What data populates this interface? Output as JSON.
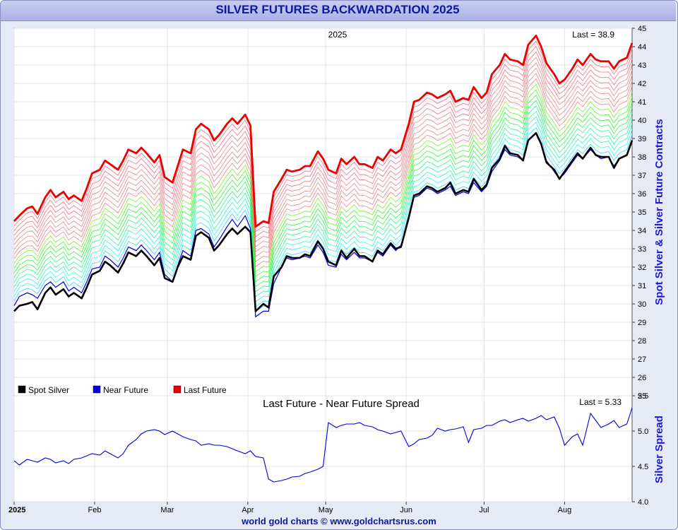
{
  "header": {
    "title": "SILVER FUTURES BACKWARDATION 2025"
  },
  "footer": {
    "credit": "world gold charts © www.goldchartsrus.com"
  },
  "chart_data": [
    {
      "type": "line",
      "title": "2025",
      "annotation": "Last = 38.9",
      "ylabel": "Spot Silver & Silver Future Contracts",
      "ylim": [
        25,
        45
      ],
      "yticks": [
        "25",
        "26",
        "27",
        "28",
        "29",
        "30",
        "31",
        "32",
        "33",
        "34",
        "35",
        "36",
        "37",
        "38",
        "39",
        "40",
        "41",
        "42",
        "43",
        "44",
        "45"
      ],
      "x_tick_labels": [
        "2025",
        "Feb",
        "Mar",
        "Apr",
        "May",
        "Jun",
        "Jul",
        "Aug"
      ],
      "x_tick_days": [
        0,
        31,
        59,
        90,
        120,
        151,
        181,
        212
      ],
      "grid": true,
      "legend_position": "bottom-left",
      "series_colors": {
        "spot": "#000000",
        "near": "#0000dd",
        "last": "#ee0000"
      },
      "legend": [
        {
          "label": "Spot Silver",
          "color": "#000000"
        },
        {
          "label": "Near Future",
          "color": "#0000dd"
        },
        {
          "label": "Last Future",
          "color": "#ee0000"
        }
      ],
      "intermediate_contracts": 17,
      "x_dates": [
        "2025-01-01",
        "2025-01-03",
        "2025-01-06",
        "2025-01-08",
        "2025-01-10",
        "2025-01-13",
        "2025-01-15",
        "2025-01-17",
        "2025-01-20",
        "2025-01-22",
        "2025-01-24",
        "2025-01-27",
        "2025-01-29",
        "2025-01-31",
        "2025-02-03",
        "2025-02-05",
        "2025-02-07",
        "2025-02-10",
        "2025-02-12",
        "2025-02-14",
        "2025-02-17",
        "2025-02-19",
        "2025-02-21",
        "2025-02-24",
        "2025-02-26",
        "2025-02-28",
        "2025-03-03",
        "2025-03-05",
        "2025-03-07",
        "2025-03-10",
        "2025-03-12",
        "2025-03-14",
        "2025-03-17",
        "2025-03-19",
        "2025-03-21",
        "2025-03-24",
        "2025-03-26",
        "2025-03-28",
        "2025-03-31",
        "2025-04-02",
        "2025-04-04",
        "2025-04-07",
        "2025-04-09",
        "2025-04-11",
        "2025-04-14",
        "2025-04-16",
        "2025-04-18",
        "2025-04-21",
        "2025-04-23",
        "2025-04-25",
        "2025-04-28",
        "2025-04-30",
        "2025-05-02",
        "2025-05-05",
        "2025-05-07",
        "2025-05-09",
        "2025-05-12",
        "2025-05-14",
        "2025-05-16",
        "2025-05-19",
        "2025-05-21",
        "2025-05-23",
        "2025-05-26",
        "2025-05-28",
        "2025-05-30",
        "2025-06-02",
        "2025-06-04",
        "2025-06-06",
        "2025-06-09",
        "2025-06-11",
        "2025-06-13",
        "2025-06-16",
        "2025-06-18",
        "2025-06-20",
        "2025-06-23",
        "2025-06-25",
        "2025-06-27",
        "2025-06-30",
        "2025-07-02",
        "2025-07-04",
        "2025-07-07",
        "2025-07-09",
        "2025-07-11",
        "2025-07-14",
        "2025-07-16",
        "2025-07-18",
        "2025-07-21",
        "2025-07-23",
        "2025-07-25",
        "2025-07-28",
        "2025-07-30",
        "2025-08-01",
        "2025-08-04",
        "2025-08-06",
        "2025-08-08",
        "2025-08-11",
        "2025-08-13",
        "2025-08-15",
        "2025-08-18",
        "2025-08-20",
        "2025-08-22",
        "2025-08-25",
        "2025-08-27"
      ],
      "spot": [
        29.6,
        29.9,
        30.0,
        30.1,
        29.7,
        30.6,
        30.9,
        30.5,
        30.8,
        30.4,
        30.6,
        30.3,
        30.9,
        31.6,
        31.8,
        32.3,
        32.1,
        31.7,
        32.2,
        32.8,
        32.6,
        32.9,
        32.6,
        32.1,
        32.5,
        31.4,
        31.2,
        32.0,
        32.6,
        32.4,
        33.7,
        33.9,
        33.6,
        32.9,
        33.2,
        33.8,
        34.1,
        33.8,
        34.2,
        33.9,
        29.6,
        30.0,
        29.8,
        31.5,
        32.0,
        32.6,
        32.5,
        32.5,
        32.7,
        32.6,
        33.4,
        33.0,
        32.3,
        32.1,
        32.9,
        32.5,
        33.0,
        32.6,
        32.6,
        32.3,
        32.9,
        32.7,
        33.3,
        33.0,
        33.1,
        34.7,
        35.9,
        36.0,
        36.4,
        36.3,
        36.1,
        36.3,
        36.6,
        36.0,
        36.2,
        36.1,
        36.8,
        36.2,
        36.5,
        37.4,
        37.9,
        38.6,
        38.2,
        38.1,
        37.8,
        38.9,
        39.3,
        38.7,
        37.7,
        37.3,
        36.8,
        37.2,
        37.8,
        38.2,
        37.9,
        38.5,
        38.1,
        38.0,
        38.0,
        37.4,
        37.9,
        38.1,
        38.9
      ],
      "near": [
        29.9,
        30.4,
        30.6,
        30.5,
        30.3,
        31.0,
        31.2,
        30.9,
        31.2,
        30.7,
        30.9,
        30.6,
        31.2,
        31.9,
        32.0,
        32.6,
        32.4,
        32.0,
        32.5,
        33.1,
        32.9,
        33.2,
        32.9,
        32.4,
        32.8,
        31.6,
        31.2,
        32.1,
        32.9,
        32.6,
        34.0,
        34.1,
        33.8,
        33.1,
        33.5,
        34.2,
        34.6,
        34.2,
        34.8,
        34.1,
        29.3,
        29.6,
        29.6,
        31.1,
        32.0,
        32.5,
        32.4,
        32.5,
        32.6,
        32.5,
        33.2,
        32.8,
        32.1,
        32.0,
        32.7,
        32.4,
        32.8,
        32.5,
        32.5,
        32.3,
        32.8,
        32.6,
        33.2,
        32.9,
        33.2,
        34.6,
        35.8,
        35.9,
        36.3,
        36.2,
        36.0,
        36.2,
        36.4,
        35.9,
        36.1,
        36.0,
        36.6,
        36.1,
        36.4,
        37.2,
        37.8,
        38.4,
        38.1,
        38.0,
        37.8,
        38.9,
        39.3,
        38.7,
        37.8,
        37.2,
        36.8,
        37.1,
        37.7,
        38.1,
        37.9,
        38.4,
        38.1,
        37.9,
        38.0,
        37.5,
        37.9,
        38.1,
        38.9
      ],
      "last": [
        34.5,
        34.8,
        35.2,
        35.3,
        34.9,
        35.8,
        36.2,
        35.8,
        36.1,
        35.7,
        35.9,
        35.6,
        36.3,
        37.1,
        37.3,
        37.8,
        37.6,
        37.3,
        37.8,
        38.4,
        38.2,
        38.5,
        38.2,
        37.7,
        38.1,
        36.9,
        36.6,
        37.5,
        38.4,
        38.2,
        39.5,
        39.8,
        39.5,
        38.9,
        39.2,
        39.8,
        40.1,
        39.8,
        40.3,
        39.7,
        34.2,
        34.5,
        34.4,
        36.1,
        36.8,
        37.3,
        37.2,
        37.3,
        37.5,
        37.5,
        38.3,
        37.9,
        37.3,
        37.1,
        37.9,
        37.6,
        38.0,
        37.6,
        37.6,
        37.4,
        38.0,
        37.8,
        38.4,
        38.2,
        38.4,
        39.8,
        41.0,
        41.1,
        41.5,
        41.4,
        41.2,
        41.4,
        41.6,
        41.0,
        41.2,
        41.1,
        41.8,
        41.2,
        41.5,
        42.5,
        43.0,
        43.6,
        43.3,
        43.2,
        43.0,
        44.1,
        44.6,
        44.0,
        43.1,
        42.5,
        42.0,
        42.2,
        42.8,
        43.3,
        43.0,
        43.6,
        43.3,
        43.2,
        43.2,
        42.8,
        43.2,
        43.4,
        44.2
      ]
    },
    {
      "type": "line",
      "title": "Last Future - Near Future Spread",
      "annotation": "Last = 5.33",
      "ylabel": "Silver Spread",
      "ylim": [
        4.0,
        5.5
      ],
      "yticks": [
        "4.0",
        "4.5",
        "5.0",
        "5.5"
      ],
      "grid": true,
      "series_color": "#0000dd",
      "x_dates_ref": "shared with price panel",
      "values": [
        4.58,
        4.52,
        4.6,
        4.58,
        4.56,
        4.62,
        4.6,
        4.55,
        4.58,
        4.54,
        4.6,
        4.62,
        4.65,
        4.68,
        4.66,
        4.72,
        4.68,
        4.62,
        4.68,
        4.8,
        4.88,
        4.96,
        5.0,
        5.02,
        5.0,
        4.95,
        5.0,
        4.96,
        4.92,
        4.88,
        4.86,
        4.8,
        4.82,
        4.8,
        4.8,
        4.78,
        4.75,
        4.72,
        4.68,
        4.72,
        4.64,
        4.62,
        4.32,
        4.28,
        4.3,
        4.32,
        4.35,
        4.36,
        4.4,
        4.42,
        4.46,
        4.5,
        5.12,
        5.05,
        5.08,
        5.1,
        5.1,
        5.12,
        5.08,
        5.06,
        5.02,
        5.0,
        4.96,
        4.98,
        5.0,
        4.78,
        4.82,
        4.88,
        4.9,
        4.94,
        5.04,
        5.0,
        5.02,
        5.03,
        5.06,
        4.84,
        5.02,
        5.04,
        5.08,
        5.08,
        5.14,
        5.16,
        5.12,
        5.16,
        5.18,
        5.14,
        5.18,
        5.22,
        5.16,
        5.2,
        5.04,
        4.8,
        4.92,
        4.96,
        4.8,
        5.25,
        5.15,
        5.05,
        5.1,
        5.15,
        5.05,
        5.1,
        5.33
      ]
    }
  ]
}
